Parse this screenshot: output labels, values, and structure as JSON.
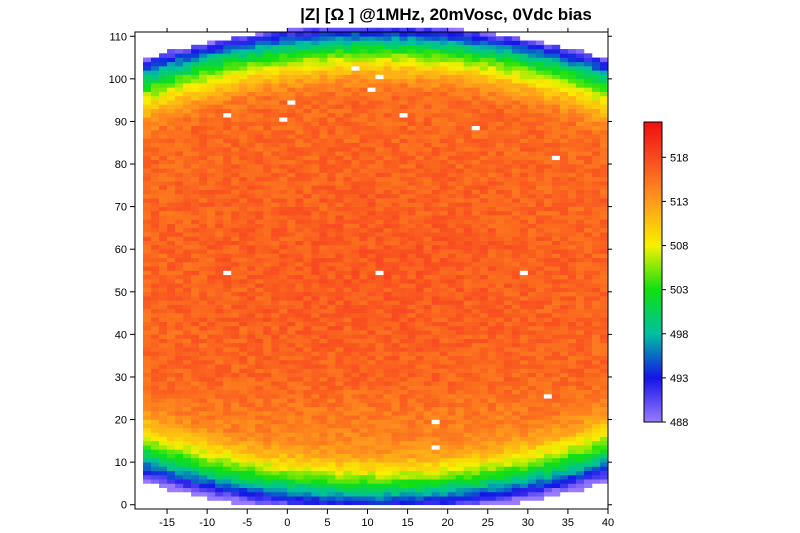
{
  "chart_data": {
    "type": "heatmap",
    "title": "|Z| [Ω ] @1MHz, 20mVosc, 0Vdc bias",
    "xlabel": "",
    "ylabel": "",
    "xlim": [
      -19,
      40
    ],
    "ylim": [
      -1,
      111
    ],
    "x_ticks": [
      -15,
      -10,
      -5,
      0,
      5,
      10,
      15,
      20,
      25,
      30,
      35,
      40
    ],
    "x_tick_labels": [
      "-15",
      "-10",
      "-5",
      "0",
      "5",
      "10",
      "15",
      "20",
      "25",
      "30",
      "35",
      "40"
    ],
    "y_ticks": [
      0,
      10,
      20,
      30,
      40,
      50,
      60,
      70,
      80,
      90,
      100,
      110
    ],
    "y_tick_labels": [
      "0",
      "10",
      "20",
      "30",
      "40",
      "50",
      "60",
      "70",
      "80",
      "90",
      "100",
      "110"
    ],
    "wafer": {
      "center_x": 11,
      "center_y": 55,
      "radius": 57.5
    },
    "cell_size": 1,
    "value_model": {
      "center_value": 517,
      "edge_value": 490,
      "plateau_fraction": 0.7
    },
    "missing_cells": [
      [
        -8,
        54
      ],
      [
        11,
        54
      ],
      [
        29,
        54
      ],
      [
        8,
        102
      ],
      [
        11,
        100
      ],
      [
        10,
        97
      ],
      [
        0,
        94
      ],
      [
        -1,
        90
      ],
      [
        -8,
        91
      ],
      [
        14,
        91
      ],
      [
        23,
        88
      ],
      [
        33,
        81
      ],
      [
        32,
        25
      ],
      [
        18,
        19
      ],
      [
        18,
        13
      ]
    ],
    "colorbar": {
      "min": 488,
      "max": 522,
      "ticks": [
        518,
        513,
        508,
        503,
        498,
        493,
        488
      ],
      "tick_labels": [
        "518",
        "513",
        "508",
        "503",
        "498",
        "493",
        "488"
      ],
      "stops": [
        {
          "value": 488,
          "color": "#9a7bff"
        },
        {
          "value": 493,
          "color": "#1414e8"
        },
        {
          "value": 498,
          "color": "#00c0a0"
        },
        {
          "value": 503,
          "color": "#10e010"
        },
        {
          "value": 508,
          "color": "#f8f000"
        },
        {
          "value": 513,
          "color": "#ff9a1c"
        },
        {
          "value": 518,
          "color": "#f84820"
        },
        {
          "value": 522,
          "color": "#ee1010"
        }
      ]
    }
  }
}
